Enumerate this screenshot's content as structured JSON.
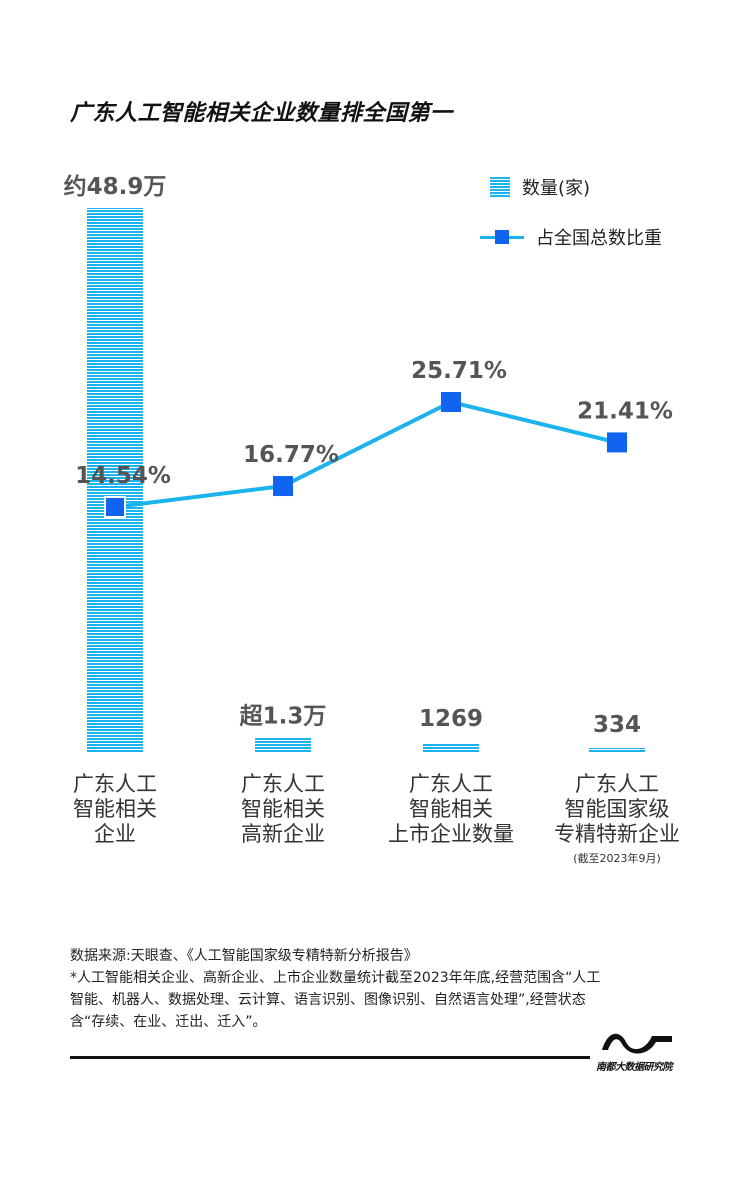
{
  "title": "广东人工智能相关企业数量排全国第一",
  "legend": {
    "bar_label": "数量(家)",
    "line_label": "占全国总数比重"
  },
  "colors": {
    "bar": "#1ab3ee",
    "line": "#1ab3ee",
    "marker": "#1164f0",
    "label": "#555555"
  },
  "chart_data": {
    "type": "bar",
    "categories": [
      "广东人工智能相关企业",
      "广东人工智能相关高新企业",
      "广东人工智能相关上市企业数量",
      "广东人工智能国家级专精特新企业"
    ],
    "series": [
      {
        "name": "数量(家)",
        "type": "bar",
        "values": [
          489000,
          13000,
          1269,
          334
        ],
        "data_labels": [
          "约48.9万",
          "超1.3万",
          "1269",
          "334"
        ]
      },
      {
        "name": "占全国总数比重",
        "type": "line",
        "values": [
          14.54,
          16.77,
          25.71,
          21.41
        ],
        "data_labels": [
          "14.54%",
          "16.77%",
          "25.71%",
          "21.41%"
        ]
      }
    ]
  },
  "category_labels": [
    [
      "广东人工",
      "智能相关",
      "企业"
    ],
    [
      "广东人工",
      "智能相关",
      "高新企业"
    ],
    [
      "广东人工",
      "智能相关",
      "上市企业数量"
    ],
    [
      "广东人工",
      "智能国家级",
      "专精特新企业"
    ]
  ],
  "category_note": "(截至2023年9月)",
  "source": {
    "line1": "数据来源:天眼查、《人工智能国家级专精特新分析报告》",
    "line2": "*人工智能相关企业、高新企业、上市企业数量统计截至2023年年底,经营范围含“人工智能、机器人、数据处理、云计算、语言识别、图像识别、自然语言处理”,经营状态含“存续、在业、迁出、迁入”。"
  },
  "logo": {
    "text": "南都大数据研究院"
  }
}
